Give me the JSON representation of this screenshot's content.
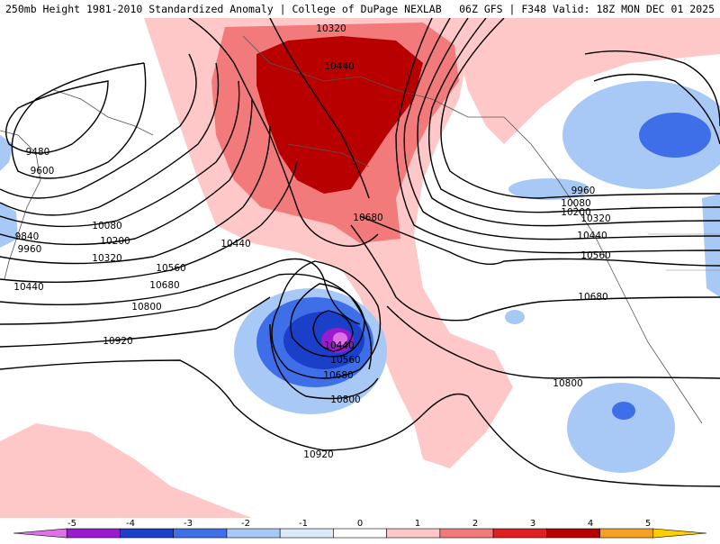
{
  "header": {
    "title_left": "250mb Height 1981-2010 Standardized Anomaly | College of DuPage NEXLAB",
    "title_right": "06Z GFS | F348 Valid: 18Z MON DEC 01 2025"
  },
  "map": {
    "contour_labels": [
      {
        "id": "c10320-top",
        "text": "10320"
      },
      {
        "id": "c10440-top",
        "text": "10440"
      },
      {
        "id": "c9480",
        "text": "9480"
      },
      {
        "id": "c9600",
        "text": "9600"
      },
      {
        "id": "c9840",
        "text": "9840"
      },
      {
        "id": "c9960-w",
        "text": "9960"
      },
      {
        "id": "c10080-w",
        "text": "10080"
      },
      {
        "id": "c10200-w",
        "text": "10200"
      },
      {
        "id": "c10320-w",
        "text": "10320"
      },
      {
        "id": "c10440-w",
        "text": "10440"
      },
      {
        "id": "c10440-mid",
        "text": "10440"
      },
      {
        "id": "c10560-mid",
        "text": "10560"
      },
      {
        "id": "c10680-mid",
        "text": "10680"
      },
      {
        "id": "c10800-mid",
        "text": "10800"
      },
      {
        "id": "c10920-w",
        "text": "10920"
      },
      {
        "id": "c10680-n",
        "text": "10680"
      },
      {
        "id": "c9960-e",
        "text": "9960"
      },
      {
        "id": "c10080-e",
        "text": "10080"
      },
      {
        "id": "c10200-e",
        "text": "10200"
      },
      {
        "id": "c10320-e",
        "text": "10320"
      },
      {
        "id": "c10440-e",
        "text": "10440"
      },
      {
        "id": "c10560-e",
        "text": "10560"
      },
      {
        "id": "c10680-e",
        "text": "10680"
      },
      {
        "id": "c10800-e",
        "text": "10800"
      },
      {
        "id": "c10440-low",
        "text": "10440"
      },
      {
        "id": "c10560-low",
        "text": "10560"
      },
      {
        "id": "c10680-low",
        "text": "10680"
      },
      {
        "id": "c10800-low",
        "text": "10800"
      },
      {
        "id": "c10920-s",
        "text": "10920"
      }
    ]
  },
  "colorbar": {
    "ticks": [
      "-5",
      "-4",
      "-3",
      "-2",
      "-1",
      "0",
      "1",
      "2",
      "3",
      "4",
      "5"
    ],
    "colors": [
      "#e070e8",
      "#9a1ad0",
      "#1a3fc8",
      "#3f6fe8",
      "#a8c8f5",
      "#dceaf9",
      "#ffffff",
      "#ffc8c8",
      "#f27a7a",
      "#e02020",
      "#b80000",
      "#f5a020",
      "#ffd000"
    ]
  }
}
